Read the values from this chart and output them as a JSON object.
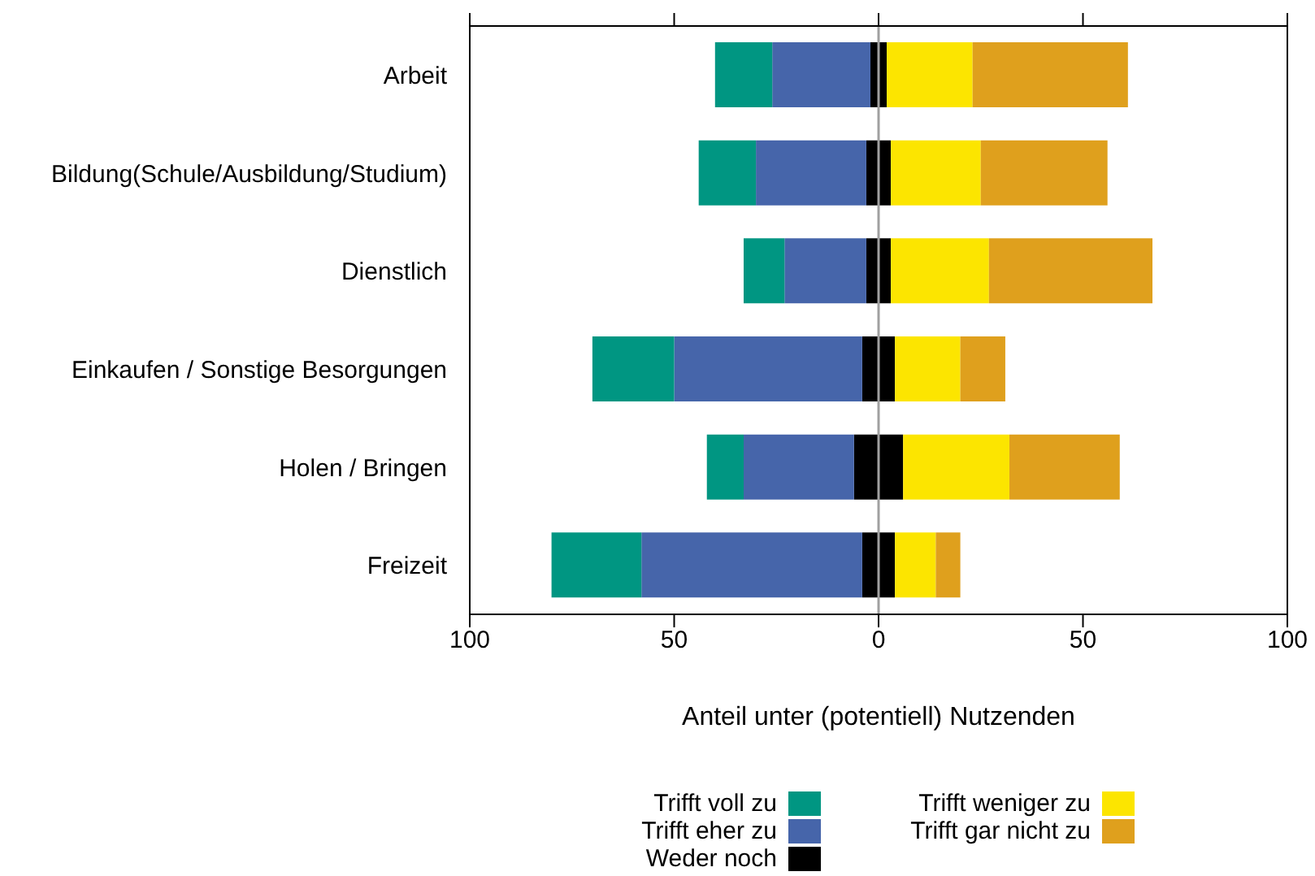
{
  "chart_data": {
    "type": "bar",
    "orientation": "horizontal",
    "stacked": true,
    "categories": [
      "Arbeit",
      "Bildung(Schule/Ausbildung/Studium)",
      "Dienstlich",
      "Einkaufen / Sonstige Besorgungen",
      "Holen / Bringen",
      "Freizeit"
    ],
    "series": [
      {
        "name": "Weder noch",
        "color": "#000000",
        "values": [
          -2,
          -3,
          -3,
          -4,
          -6,
          -4
        ]
      },
      {
        "color": "#000000",
        "values": [
          2,
          3,
          3,
          4,
          6,
          4
        ]
      },
      {
        "name": "Trifft eher zu",
        "color": "#4665aa",
        "values": [
          -24,
          -27,
          -20,
          -46,
          -27,
          -54
        ]
      },
      {
        "name": "Trifft weniger zu",
        "color": "#fce500",
        "values": [
          21,
          22,
          24,
          16,
          26,
          10
        ]
      },
      {
        "name": "Trifft voll zu",
        "color": "#009682",
        "values": [
          -14,
          -14,
          -10,
          -20,
          -9,
          -22
        ]
      },
      {
        "name": "Trifft gar nicht zu",
        "color": "#dfa01d",
        "values": [
          38,
          31,
          40,
          11,
          27,
          6
        ]
      }
    ],
    "xlabel": "Anteil unter (potentiell) Nutzenden",
    "xlim": [
      -100,
      100
    ],
    "xticks": [
      {
        "value": -100,
        "label": "100"
      },
      {
        "value": -50,
        "label": "50"
      },
      0,
      50,
      100
    ],
    "ref_lines": [
      {
        "axis": "x",
        "value": 0,
        "color": "#a0a0a0"
      }
    ],
    "legend": "bottom"
  }
}
